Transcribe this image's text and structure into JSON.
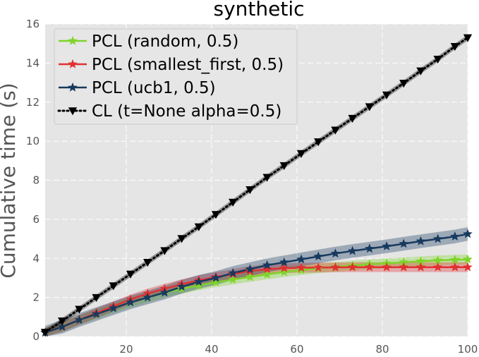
{
  "chart_data": {
    "type": "line",
    "title": "synthetic",
    "xlabel": "",
    "ylabel": "Cumulative time (s)",
    "xlim": [
      1,
      100
    ],
    "ylim": [
      0,
      16
    ],
    "xticks": [
      20,
      40,
      60,
      80,
      100
    ],
    "yticks": [
      0,
      2,
      4,
      6,
      8,
      10,
      12,
      14,
      16
    ],
    "grid": true,
    "legend_position": "top-left",
    "series": [
      {
        "name": "PCL (random, 0.5)",
        "color": "#7fd42a",
        "marker": "star",
        "linestyle": "solid",
        "x": [
          1,
          5,
          9,
          13,
          17,
          21,
          25,
          29,
          33,
          37,
          41,
          45,
          49,
          53,
          57,
          61,
          65,
          69,
          73,
          77,
          81,
          85,
          89,
          93,
          97,
          100
        ],
        "y": [
          0.2,
          0.5,
          0.85,
          1.15,
          1.45,
          1.75,
          2.0,
          2.25,
          2.45,
          2.62,
          2.78,
          2.92,
          3.05,
          3.18,
          3.3,
          3.4,
          3.5,
          3.57,
          3.63,
          3.7,
          3.75,
          3.8,
          3.85,
          3.9,
          3.93,
          3.95
        ],
        "band": 0.25
      },
      {
        "name": "PCL (smallest_first, 0.5)",
        "color": "#e03131",
        "marker": "star",
        "linestyle": "solid",
        "x": [
          1,
          5,
          9,
          13,
          17,
          21,
          25,
          29,
          33,
          37,
          41,
          45,
          49,
          53,
          57,
          61,
          65,
          69,
          73,
          77,
          81,
          85,
          89,
          93,
          97,
          100
        ],
        "y": [
          0.2,
          0.5,
          0.85,
          1.2,
          1.55,
          1.9,
          2.2,
          2.45,
          2.68,
          2.88,
          3.05,
          3.2,
          3.35,
          3.45,
          3.5,
          3.52,
          3.53,
          3.54,
          3.55,
          3.55,
          3.55,
          3.55,
          3.55,
          3.55,
          3.55,
          3.55
        ],
        "band": 0.25
      },
      {
        "name": "PCL (ucb1, 0.5)",
        "color": "#173a5e",
        "marker": "star",
        "linestyle": "solid",
        "x": [
          1,
          5,
          9,
          13,
          17,
          21,
          25,
          29,
          33,
          37,
          41,
          45,
          49,
          53,
          57,
          61,
          65,
          69,
          73,
          77,
          81,
          85,
          89,
          93,
          97,
          100
        ],
        "y": [
          0.2,
          0.5,
          0.85,
          1.15,
          1.45,
          1.75,
          2.0,
          2.25,
          2.55,
          2.8,
          3.0,
          3.25,
          3.45,
          3.65,
          3.8,
          3.95,
          4.1,
          4.25,
          4.38,
          4.5,
          4.62,
          4.75,
          4.88,
          5.0,
          5.12,
          5.25
        ],
        "band": 0.35
      },
      {
        "name": "CL (t=None alpha=0.5)",
        "color": "#000000",
        "marker": "triangle-down",
        "linestyle": "dotted",
        "x": [
          1,
          5,
          9,
          13,
          17,
          21,
          25,
          29,
          33,
          37,
          41,
          45,
          49,
          53,
          57,
          61,
          65,
          69,
          73,
          77,
          81,
          85,
          89,
          93,
          97,
          100
        ],
        "y": [
          0.22,
          0.8,
          1.4,
          2.0,
          2.6,
          3.2,
          3.8,
          4.4,
          5.02,
          5.62,
          6.25,
          6.88,
          7.52,
          8.15,
          8.75,
          9.37,
          9.97,
          10.57,
          11.17,
          11.77,
          12.37,
          12.97,
          13.6,
          14.2,
          14.85,
          15.3
        ],
        "band": 0.15
      }
    ]
  }
}
